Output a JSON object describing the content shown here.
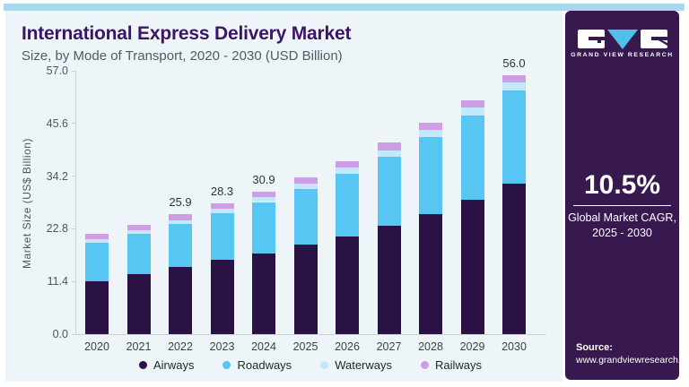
{
  "header": {
    "title": "International Express Delivery Market",
    "subtitle": "Size, by Mode of Transport, 2020 - 2030 (USD Billion)"
  },
  "chart_data": {
    "type": "bar",
    "stacked": true,
    "title": "International Express Delivery Market Size, by Mode of Transport, 2020 - 2030 (USD Billion)",
    "xlabel": "",
    "ylabel": "Market Size (US$ Billion)",
    "ylim": [
      0,
      57
    ],
    "yticks": [
      "0.0",
      "11.4",
      "22.8",
      "34.2",
      "45.6",
      "57.0"
    ],
    "grid": false,
    "legend_position": "bottom",
    "categories": [
      "2020",
      "2021",
      "2022",
      "2023",
      "2024",
      "2025",
      "2026",
      "2027",
      "2028",
      "2029",
      "2030"
    ],
    "series": [
      {
        "name": "Airways",
        "color": "#2b1245",
        "values": [
          11.5,
          12.9,
          14.5,
          16.0,
          17.4,
          19.3,
          21.2,
          23.4,
          26.0,
          29.1,
          32.5
        ]
      },
      {
        "name": "Roadways",
        "color": "#58c6f2",
        "values": [
          8.2,
          8.8,
          9.3,
          10.1,
          11.2,
          12.2,
          13.6,
          15.0,
          16.6,
          18.2,
          20.2
        ]
      },
      {
        "name": "Waterways",
        "color": "#c3e7fb",
        "values": [
          0.8,
          0.8,
          0.9,
          1.0,
          1.0,
          1.1,
          1.2,
          1.4,
          1.6,
          1.7,
          1.7
        ]
      },
      {
        "name": "Railways",
        "color": "#ce9ee4",
        "values": [
          1.3,
          1.2,
          1.2,
          1.2,
          1.3,
          1.4,
          1.5,
          1.6,
          1.6,
          1.6,
          1.6
        ]
      }
    ],
    "totals": [
      21.8,
      23.7,
      25.9,
      28.3,
      30.9,
      34.0,
      37.5,
      41.4,
      45.8,
      50.6,
      56.0
    ],
    "total_labels": [
      "",
      "",
      "25.9",
      "28.3",
      "30.9",
      "",
      "",
      "",
      "",
      "",
      "56.0"
    ]
  },
  "sidebar": {
    "brand": "GRAND VIEW RESEARCH",
    "cagr_value": "10.5%",
    "cagr_line1": "Global Market CAGR,",
    "cagr_line2": "2025 - 2030",
    "source_label": "Source:",
    "source_url": "www.grandviewresearch.com"
  },
  "colors": {
    "top_strip": "#a7d8f0",
    "chart_bg": "#eef5f9",
    "panel_bg": "#38194f",
    "title": "#3d1566",
    "subtitle": "#505b64",
    "axis_text": "#4e565e",
    "x_text": "#3c4248",
    "total_text": "#30343a",
    "legend_text": "#23272b",
    "logo_triangle": "#4fc0e8"
  }
}
